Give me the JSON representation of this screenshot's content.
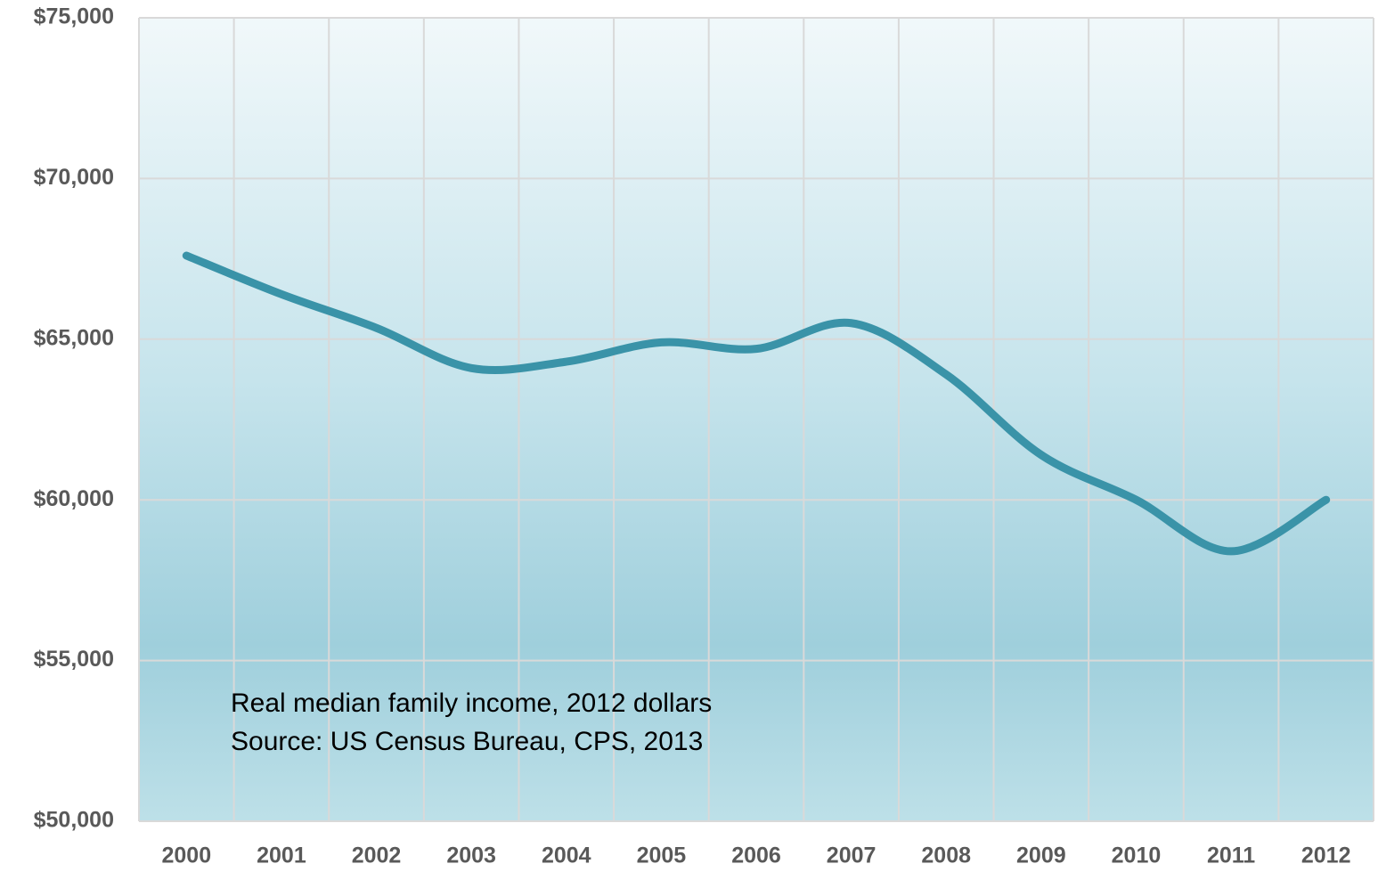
{
  "chart_data": {
    "type": "line",
    "categories": [
      "2000",
      "2001",
      "2002",
      "2003",
      "2004",
      "2005",
      "2006",
      "2007",
      "2008",
      "2009",
      "2010",
      "2011",
      "2012"
    ],
    "series": [
      {
        "name": "Real median family income",
        "color": "#3a93a8",
        "values": [
          67600,
          66400,
          65350,
          64100,
          64300,
          64900,
          64700,
          65500,
          63900,
          61400,
          60000,
          58400,
          60000
        ]
      }
    ],
    "ylim": [
      50000,
      75000
    ],
    "yticks": [
      {
        "value": 50000,
        "label": "$50,000"
      },
      {
        "value": 55000,
        "label": "$55,000"
      },
      {
        "value": 60000,
        "label": "$60,000"
      },
      {
        "value": 65000,
        "label": "$65,000"
      },
      {
        "value": 70000,
        "label": "$70,000"
      },
      {
        "value": 75000,
        "label": "$75,000"
      }
    ],
    "grid": true,
    "annotations": [
      "Real median family income, 2012 dollars",
      "Source:  US Census Bureau, CPS, 2013"
    ]
  }
}
